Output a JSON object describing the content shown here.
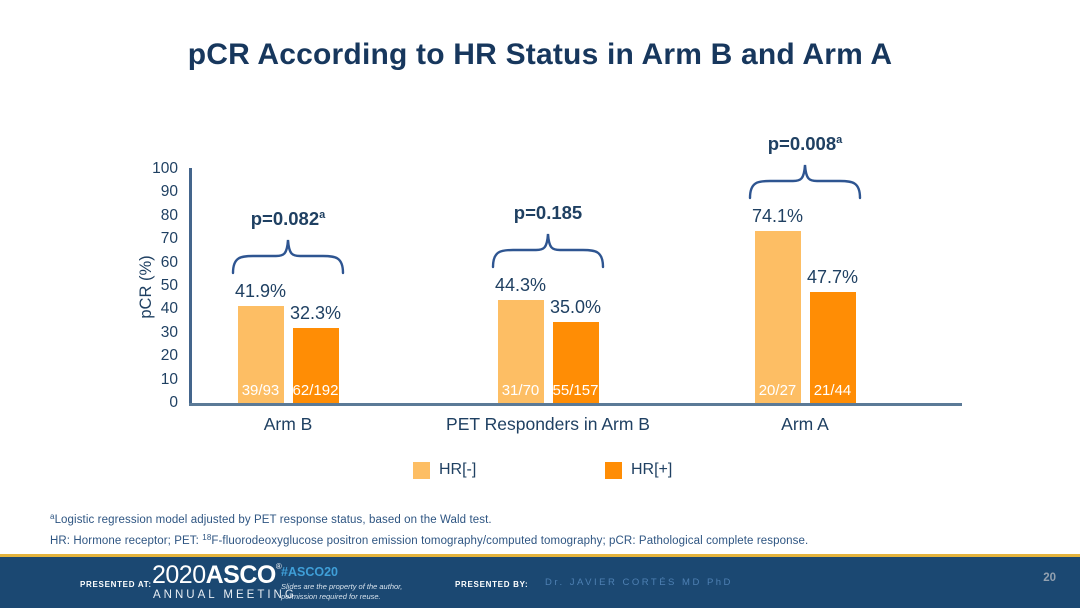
{
  "slide": {
    "title": "pCR According to HR Status in Arm B and Arm A",
    "footnote1": {
      "sup": "a",
      "text": "Logistic regression model adjusted by PET response status, based on the Wald test."
    },
    "footnote2": {
      "pre": "HR: Hormone receptor; PET: ",
      "sup": "18",
      "rest": "F-fluorodeoxyglucose positron emission tomography/computed tomography; pCR: Pathological complete response."
    },
    "page_number": "20"
  },
  "footer": {
    "presented_at_label": "PRESENTED AT:",
    "logo_year": "2020",
    "logo_name": "ASCO",
    "logo_reg": "®",
    "logo_subtitle": "ANNUAL MEETING",
    "hashtag": "#ASCO20",
    "disclaimer_line1": "Slides are the property of the author,",
    "disclaimer_line2": "permission required for reuse.",
    "presented_by_label": "PRESENTED BY:",
    "presenter": "Dr. JAVIER CORTÉS MD PhD"
  },
  "colors": {
    "hr_negative": "#fdbe64",
    "hr_positive": "#ff8d05",
    "title_navy": "#17375d",
    "chart_text_navy": "#1f4062",
    "brace_blue": "#2e5591",
    "footer_blue": "#1b4872",
    "gold_line": "#e3b33c"
  },
  "chart_data": {
    "type": "bar",
    "title": "pCR According to HR Status in Arm B and Arm A",
    "xlabel": "",
    "ylabel": "pCR (%)",
    "ylim": [
      0,
      100
    ],
    "ytick_step": 10,
    "grid": false,
    "legend_position": "bottom",
    "categories": [
      "Arm B",
      "PET Responders in Arm B",
      "Arm A"
    ],
    "series": [
      {
        "name": "HR[-]",
        "color": "#fdbe64",
        "values": [
          41.9,
          44.3,
          74.1
        ],
        "value_labels": [
          "41.9%",
          "44.3%",
          "74.1%"
        ],
        "counts": [
          "39/93",
          "31/70",
          "20/27"
        ]
      },
      {
        "name": "HR[+]",
        "color": "#ff8d05",
        "values": [
          32.3,
          35.0,
          47.7
        ],
        "value_labels": [
          "32.3%",
          "35.0%",
          "47.7%"
        ],
        "counts": [
          "62/192",
          "55/157",
          "21/44"
        ]
      }
    ],
    "p_values": [
      {
        "text": "p=0.082",
        "sup": "a"
      },
      {
        "text": "p=0.185",
        "sup": ""
      },
      {
        "text": "p=0.008",
        "sup": "a"
      }
    ]
  }
}
